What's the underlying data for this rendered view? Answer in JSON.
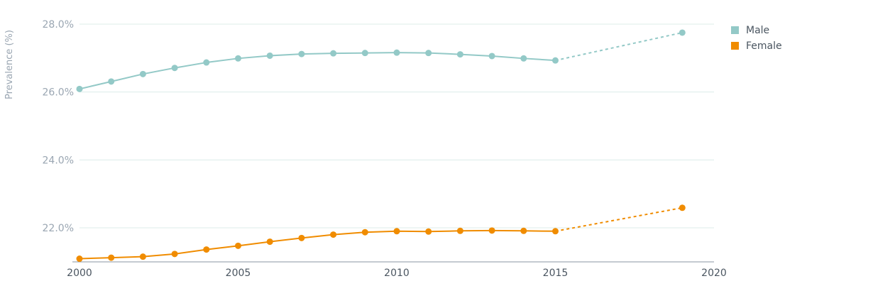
{
  "chart_data": {
    "type": "line",
    "title": "",
    "xlabel": "",
    "ylabel": "Prevalence (%)",
    "xlim": [
      2000,
      2020
    ],
    "ylim": [
      21.0,
      28.3
    ],
    "x_ticks": [
      2000,
      2005,
      2010,
      2015,
      2020
    ],
    "y_ticks": [
      22.0,
      24.0,
      26.0,
      28.0
    ],
    "y_tick_labels": [
      "22.0%",
      "24.0%",
      "26.0%",
      "28.0%"
    ],
    "grid": true,
    "legend": "top-right",
    "series": [
      {
        "name": "Male",
        "color": "#93c9c7",
        "x": [
          2000,
          2001,
          2002,
          2003,
          2004,
          2005,
          2006,
          2007,
          2008,
          2009,
          2010,
          2011,
          2012,
          2013,
          2014,
          2015
        ],
        "y": [
          26.09,
          26.31,
          26.53,
          26.71,
          26.87,
          26.99,
          27.07,
          27.12,
          27.14,
          27.15,
          27.16,
          27.15,
          27.11,
          27.06,
          26.99,
          26.93
        ],
        "projection": {
          "x": [
            2015,
            2019
          ],
          "y": [
            26.93,
            27.75
          ]
        }
      },
      {
        "name": "Female",
        "color": "#f08c00",
        "x": [
          2000,
          2001,
          2002,
          2003,
          2004,
          2005,
          2006,
          2007,
          2008,
          2009,
          2010,
          2011,
          2012,
          2013,
          2014,
          2015
        ],
        "y": [
          21.09,
          21.12,
          21.15,
          21.23,
          21.36,
          21.47,
          21.59,
          21.7,
          21.8,
          21.87,
          21.9,
          21.89,
          21.91,
          21.92,
          21.91,
          21.9
        ],
        "projection": {
          "x": [
            2015,
            2019
          ],
          "y": [
            21.9,
            22.59
          ]
        }
      }
    ]
  }
}
